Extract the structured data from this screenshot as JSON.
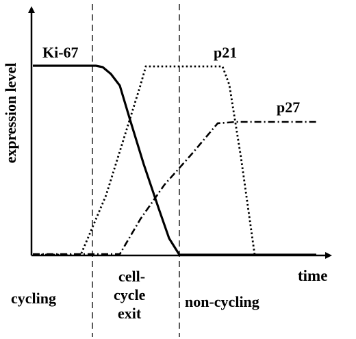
{
  "axes": {
    "ylabel": "expression level",
    "xlabel": "time"
  },
  "curves": [
    {
      "id": "ki67",
      "label": "Ki-67",
      "style": "solid"
    },
    {
      "id": "p21",
      "label": "p21",
      "style": "dotted"
    },
    {
      "id": "p27",
      "label": "p27",
      "style": "dash-dot"
    }
  ],
  "phases": {
    "cycling": "cycling",
    "exit_line1": "cell-",
    "exit_line2": "cycle",
    "exit_line3": "exit",
    "noncycling": "non-cycling"
  },
  "colors": {
    "ink": "#000000",
    "background": "#ffffff"
  }
}
